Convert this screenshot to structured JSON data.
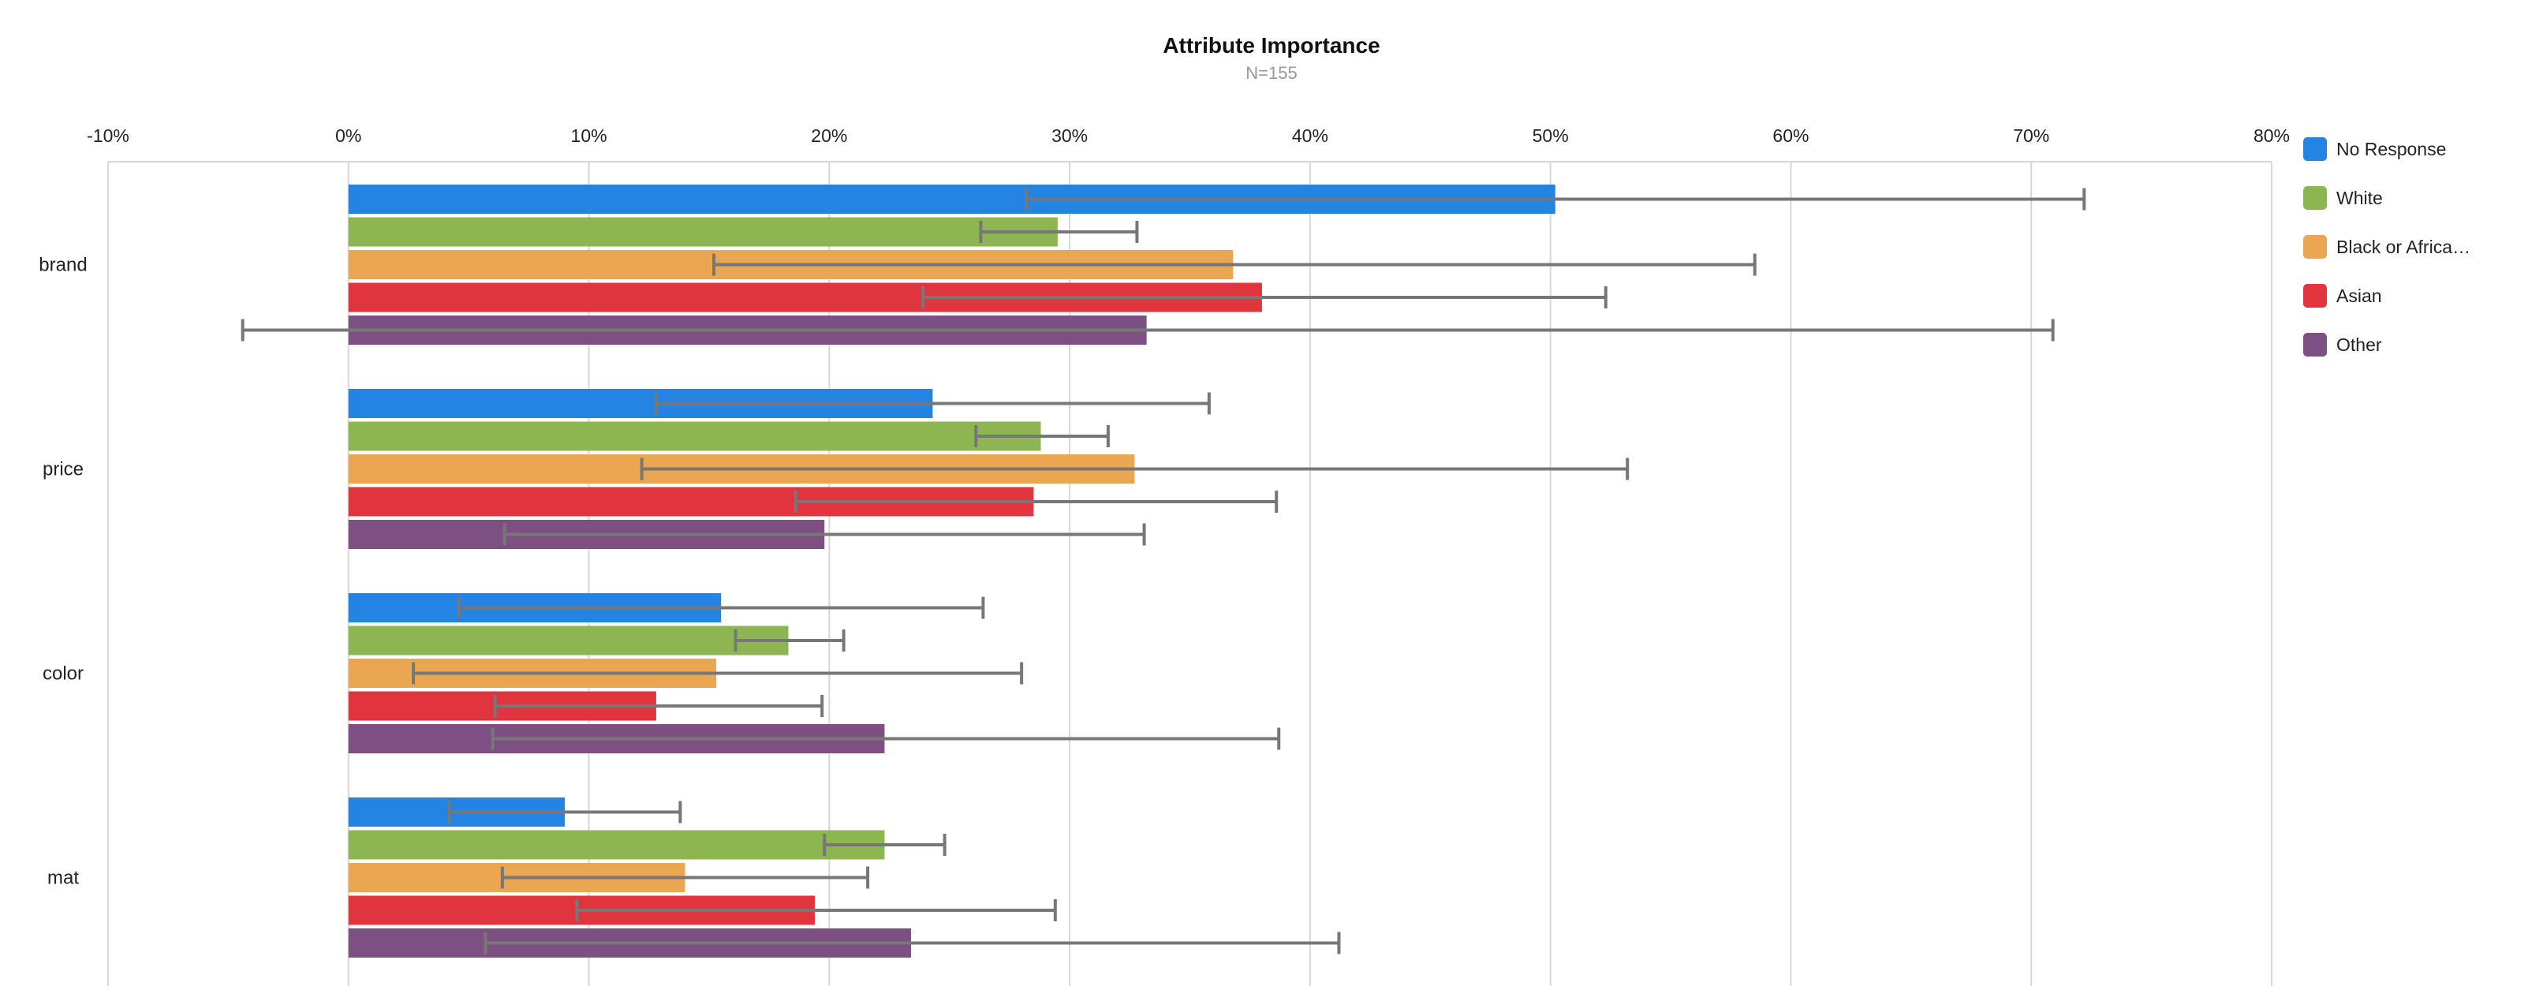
{
  "chart_data": {
    "type": "bar",
    "orientation": "horizontal",
    "title": "Attribute Importance",
    "subtitle": "N=155",
    "categories": [
      "brand",
      "price",
      "color",
      "mat"
    ],
    "xlim": [
      -10,
      80
    ],
    "ticks": [
      -10,
      0,
      10,
      20,
      30,
      40,
      50,
      60,
      70,
      80
    ],
    "tick_labels": [
      "-10%",
      "0%",
      "10%",
      "20%",
      "30%",
      "40%",
      "50%",
      "60%",
      "70%",
      "80%"
    ],
    "legend_position": "right",
    "grid": true,
    "series": [
      {
        "name": "No Response",
        "legend_label": "No Response",
        "color": "#2584e3",
        "values": [
          50.2,
          24.3,
          15.5,
          9.0
        ],
        "error_low": [
          28.2,
          12.8,
          4.6,
          4.2
        ],
        "error_high": [
          72.2,
          35.8,
          26.4,
          13.8
        ]
      },
      {
        "name": "White",
        "legend_label": "White",
        "color": "#8db552",
        "values": [
          29.5,
          28.8,
          18.3,
          22.3
        ],
        "error_low": [
          26.3,
          26.1,
          16.1,
          19.8
        ],
        "error_high": [
          32.8,
          31.6,
          20.6,
          24.8
        ]
      },
      {
        "name": "Black or African American",
        "legend_label": "Black or Africa…",
        "color": "#eba652",
        "values": [
          36.8,
          32.7,
          15.3,
          14.0
        ],
        "error_low": [
          15.2,
          12.2,
          2.7,
          6.4
        ],
        "error_high": [
          58.5,
          53.2,
          28.0,
          21.6
        ]
      },
      {
        "name": "Asian",
        "legend_label": "Asian",
        "color": "#e0353e",
        "values": [
          38.0,
          28.5,
          12.8,
          19.4
        ],
        "error_low": [
          23.9,
          18.6,
          6.1,
          9.5
        ],
        "error_high": [
          52.3,
          38.6,
          19.7,
          29.4
        ]
      },
      {
        "name": "Other",
        "legend_label": "Other",
        "color": "#7e4f82",
        "values": [
          33.2,
          19.8,
          22.3,
          23.4
        ],
        "error_low": [
          -4.4,
          6.5,
          6.0,
          5.7
        ],
        "error_high": [
          70.9,
          33.1,
          38.7,
          41.2
        ]
      }
    ]
  }
}
